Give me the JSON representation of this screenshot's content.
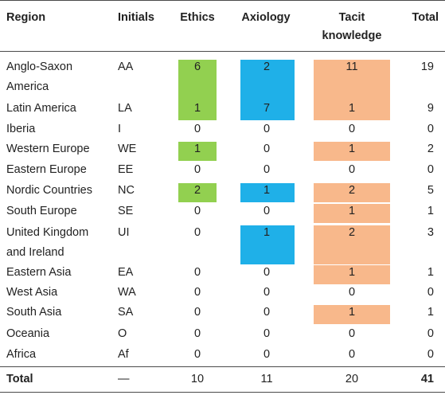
{
  "columns": {
    "region": "Region",
    "initials": "Initials",
    "ethics": "Ethics",
    "axiology": "Axiology",
    "tacit_line1": "Tacit",
    "tacit_line2": "knowledge",
    "total": "Total"
  },
  "rows": [
    {
      "region": [
        "Anglo-Saxon",
        "America"
      ],
      "initials": "AA",
      "ethics": "6",
      "axiology": "2",
      "tacit": "11",
      "total": "19",
      "hl": {
        "ethics": true,
        "axiology": true,
        "tacit": true
      }
    },
    {
      "region": [
        "Latin America"
      ],
      "initials": "LA",
      "ethics": "1",
      "axiology": "7",
      "tacit": "1",
      "total": "9",
      "hl": {
        "ethics": true,
        "axiology": true,
        "tacit": true
      }
    },
    {
      "region": [
        "Iberia"
      ],
      "initials": "I",
      "ethics": "0",
      "axiology": "0",
      "tacit": "0",
      "total": "0",
      "hl": {}
    },
    {
      "region": [
        "Western Europe"
      ],
      "initials": "WE",
      "ethics": "1",
      "axiology": "0",
      "tacit": "1",
      "total": "2",
      "hl": {
        "ethics": true,
        "tacit": true
      }
    },
    {
      "region": [
        "Eastern Europe"
      ],
      "initials": "EE",
      "ethics": "0",
      "axiology": "0",
      "tacit": "0",
      "total": "0",
      "hl": {}
    },
    {
      "region": [
        "Nordic Countries"
      ],
      "initials": "NC",
      "ethics": "2",
      "axiology": "1",
      "tacit": "2",
      "total": "5",
      "hl": {
        "ethics": true,
        "axiology": true,
        "tacit": true
      }
    },
    {
      "region": [
        "South Europe"
      ],
      "initials": "SE",
      "ethics": "0",
      "axiology": "0",
      "tacit": "1",
      "total": "1",
      "hl": {
        "tacit": true
      }
    },
    {
      "region": [
        "United Kingdom",
        "and Ireland"
      ],
      "initials": "UI",
      "ethics": "0",
      "axiology": "1",
      "tacit": "2",
      "total": "3",
      "hl": {
        "axiology": true,
        "tacit": true
      }
    },
    {
      "region": [
        "Eastern Asia"
      ],
      "initials": "EA",
      "ethics": "0",
      "axiology": "0",
      "tacit": "1",
      "total": "1",
      "hl": {
        "tacit": true
      }
    },
    {
      "region": [
        "West Asia"
      ],
      "initials": "WA",
      "ethics": "0",
      "axiology": "0",
      "tacit": "0",
      "total": "0",
      "hl": {}
    },
    {
      "region": [
        "South Asia"
      ],
      "initials": "SA",
      "ethics": "0",
      "axiology": "0",
      "tacit": "1",
      "total": "1",
      "hl": {
        "tacit": true
      }
    },
    {
      "region": [
        "Oceania"
      ],
      "initials": "O",
      "ethics": "0",
      "axiology": "0",
      "tacit": "0",
      "total": "0",
      "hl": {}
    },
    {
      "region": [
        "Africa"
      ],
      "initials": "Af",
      "ethics": "0",
      "axiology": "0",
      "tacit": "0",
      "total": "0",
      "hl": {}
    }
  ],
  "total_row": {
    "region": "Total",
    "initials": "—",
    "ethics": "10",
    "axiology": "11",
    "tacit": "20",
    "total": "41"
  },
  "colors": {
    "ethics": "#92d050",
    "axiology": "#1fb0e8",
    "tacit": "#f8b88b"
  }
}
